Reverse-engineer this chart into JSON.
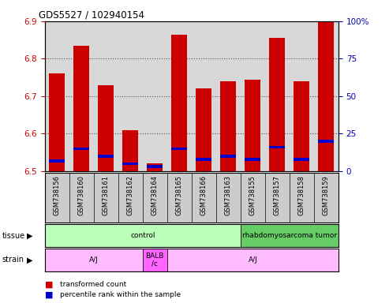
{
  "title": "GDS5527 / 102940154",
  "samples": [
    "GSM738156",
    "GSM738160",
    "GSM738161",
    "GSM738162",
    "GSM738164",
    "GSM738165",
    "GSM738166",
    "GSM738163",
    "GSM738155",
    "GSM738157",
    "GSM738158",
    "GSM738159"
  ],
  "transformed_count": [
    6.76,
    6.835,
    6.73,
    6.61,
    6.52,
    6.865,
    6.72,
    6.74,
    6.745,
    6.855,
    6.74,
    6.9
  ],
  "percentile_rank": [
    7,
    15,
    10,
    5,
    3,
    15,
    8,
    10,
    8,
    16,
    8,
    20
  ],
  "ylim_left": [
    6.5,
    6.9
  ],
  "ylim_right": [
    0,
    100
  ],
  "yticks_left": [
    6.5,
    6.6,
    6.7,
    6.8,
    6.9
  ],
  "yticks_right": [
    0,
    25,
    50,
    75,
    100
  ],
  "bar_width": 0.65,
  "red_color": "#cc0000",
  "blue_color": "#0000cc",
  "tissue_groups": [
    {
      "label": "control",
      "start": 0,
      "end": 8,
      "color": "#bbffbb"
    },
    {
      "label": "rhabdomyosarcoma tumor",
      "start": 8,
      "end": 12,
      "color": "#66cc66"
    }
  ],
  "strain_groups": [
    {
      "label": "A/J",
      "start": 0,
      "end": 4,
      "color": "#ffbbff"
    },
    {
      "label": "BALB\n/c",
      "start": 4,
      "end": 5,
      "color": "#ff66ff"
    },
    {
      "label": "A/J",
      "start": 5,
      "end": 12,
      "color": "#ffbbff"
    }
  ],
  "legend_labels": [
    "transformed count",
    "percentile rank within the sample"
  ],
  "legend_colors": [
    "#cc0000",
    "#0000cc"
  ],
  "left_tick_color": "#cc0000",
  "right_tick_color": "#0000bb",
  "grid_color": "#888888",
  "plot_bg_color": "#d8d8d8",
  "label_bg_color": "#cccccc"
}
